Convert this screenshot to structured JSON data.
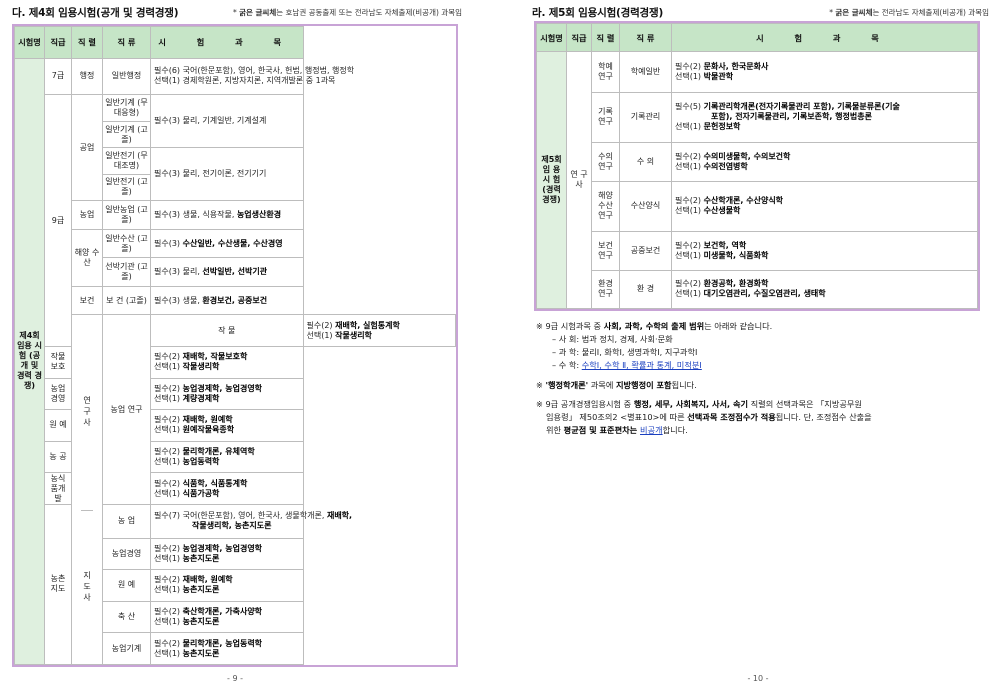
{
  "left": {
    "title": "다. 제4회 임용시험(공개 및 경력경쟁)",
    "note_mark": "* ",
    "note_bold": "굵은 글씨체",
    "note_rest": "는 호남권 공동출제 또는 전라남도 자체출제(비공개) 과목임",
    "headers": [
      "시험명",
      "직급",
      "직 렬",
      "직 류",
      "시 험 과 목"
    ],
    "exam_name": "제4회 임용 시험 (공개 및 경력 경쟁)",
    "grade7": "7급",
    "grade9": "9급",
    "research": "연 구 사",
    "guidance": "지 도 사",
    "rows": {
      "admin_series": "행정",
      "admin_class": "일반행정",
      "admin_s1": "필수(6) 국어(한문포함), 영어, 한국사, 헌법, 행정법, 행정학",
      "admin_s2": "선택(1) 경제학원론, 지방자치론, 지역개발론 중 1과목",
      "eng_series": "공업",
      "mech1": "일반기계 (무대응형)",
      "mech2": "일반기계 (고졸)",
      "mech_s": "필수(3) 물리, 기계일반, 기계설계",
      "elec1": "일반전기 (무대조명)",
      "elec2": "일반전기 (고졸)",
      "elec_s": "필수(3) 물리, 전기이론, 전기기기",
      "agri_series": "농업",
      "agri_class": "일반농업 (고졸)",
      "agri_s_a": "필수(3) 생물, 식용작물, ",
      "agri_s_b": "농업생산환경",
      "ocean_series": "해양 수산",
      "fish_class": "일반수산 (고졸)",
      "fish_s_a": "필수(3) ",
      "fish_s_b": "수산일반, 수산생물, 수산경영",
      "ship_class": "선박기관 (고졸)",
      "ship_s_a": "필수(3) 물리, ",
      "ship_s_b": "선박일반, 선박기관",
      "health_series": "보건",
      "health_class": "보 건 (고졸)",
      "health_s_a": "필수(3) 생물, ",
      "health_s_b": "환경보건, 공중보건",
      "agri_research": "농업 연구",
      "r1_class": "작 물",
      "r1_s1a": "필수(2) ",
      "r1_s1b": "재배학, 실험통계학",
      "r1_s2a": "선택(1) ",
      "r1_s2b": "작물생리학",
      "r2_class": "작물보호",
      "r2_s1a": "필수(2) ",
      "r2_s1b": "재배학, 작물보호학",
      "r2_s2a": "선택(1) ",
      "r2_s2b": "작물생리학",
      "r3_class": "농업경영",
      "r3_s1a": "필수(2) ",
      "r3_s1b": "농업경제학, 농업경영학",
      "r3_s2a": "선택(1) ",
      "r3_s2b": "계량경제학",
      "r4_class": "원 예",
      "r4_s1a": "필수(2) ",
      "r4_s1b": "재배학, 원예학",
      "r4_s2a": "선택(1) ",
      "r4_s2b": "원예작물육종학",
      "r5_class": "농 공",
      "r5_s1a": "필수(2) ",
      "r5_s1b": "물리학개론, 유체역학",
      "r5_s2a": "선택(1) ",
      "r5_s2b": "농업동력학",
      "r6_class": "농식품개발",
      "r6_s1a": "필수(2) ",
      "r6_s1b": "식품학, 식품통계학",
      "r6_s2a": "선택(1) ",
      "r6_s2b": "식품가공학",
      "rural_guid": "농촌 지도",
      "g1_class": "농 업",
      "g1_s1a": "필수(7) 국어(한문포함), 영어, 한국사, 생물학개론, ",
      "g1_s1b": "재배학,",
      "g1_s2": "작물생리학, 농촌지도론",
      "g2_class": "농업경영",
      "g2_s1a": "필수(2) ",
      "g2_s1b": "농업경제학, 농업경영학",
      "g2_s2a": "선택(1) ",
      "g2_s2b": "농촌지도론",
      "g3_class": "원 예",
      "g3_s1a": "필수(2) ",
      "g3_s1b": "재배학, 원예학",
      "g3_s2a": "선택(1) ",
      "g3_s2b": "농촌지도론",
      "g4_class": "축 산",
      "g4_s1a": "필수(2) ",
      "g4_s1b": "축산학개론, 가축사양학",
      "g4_s2a": "선택(1) ",
      "g4_s2b": "농촌지도론",
      "g5_class": "농업기계",
      "g5_s1a": "필수(2) ",
      "g5_s1b": "물리학개론, 농업동력학",
      "g5_s2a": "선택(1) ",
      "g5_s2b": "농촌지도론"
    },
    "page_number": "- 9 -"
  },
  "right": {
    "title": "라. 제5회 임용시험(경력경쟁)",
    "note_mark": "* ",
    "note_bold": "굵은 글씨체",
    "note_rest": "는 전라남도 자체출제(비공개) 과목임",
    "headers": [
      "시험명",
      "직급",
      "직 렬",
      "직 류",
      "시 험 과 목"
    ],
    "exam_name": "제5회 임 용 시 험 (경력 경쟁)",
    "grade": "연 구 사",
    "rows": {
      "a_series": "학예 연구",
      "a_class": "학예일반",
      "a_s1a": "필수(2) ",
      "a_s1b": "문화사, 한국문화사",
      "a_s2a": "선택(1) ",
      "a_s2b": "박물관학",
      "b_series": "기록 연구",
      "b_class": "기록관리",
      "b_s1a": "필수(5) ",
      "b_s1b": "기록관리학개론(전자기록물관리 포함), 기록물분류론(기술",
      "b_s2": "포함), 전자기록물관리, 기록보존학, 행정법총론",
      "b_s3a": "선택(1) ",
      "b_s3b": "문헌정보학",
      "c_series": "수의 연구",
      "c_class": "수 의",
      "c_s1a": "필수(2) ",
      "c_s1b": "수의미생물학, 수의보건학",
      "c_s2a": "선택(1) ",
      "c_s2b": "수의전염병학",
      "d_series": "해양 수산 연구",
      "d_class": "수산양식",
      "d_s1a": "필수(2) ",
      "d_s1b": "수산학개론, 수산양식학",
      "d_s2a": "선택(1) ",
      "d_s2b": "수산생물학",
      "e_series": "보건 연구",
      "e_class": "공중보건",
      "e_s1a": "필수(2) ",
      "e_s1b": "보건학, 역학",
      "e_s2a": "선택(1) ",
      "e_s2b": "미생물학, 식품화학",
      "f_series": "환경 연구",
      "f_class": "환 경",
      "f_s1a": "필수(2) ",
      "f_s1b": "환경공학, 환경화학",
      "f_s2a": "선택(1) ",
      "f_s2b": "대기오염관리, 수질오염관리, 생태학"
    },
    "notes": {
      "n1_a": "※ 9급 시험과목 중 ",
      "n1_b": "사회, 과학, 수학의 출제 범위",
      "n1_c": "는 아래와 같습니다.",
      "n1_l1": "– 사 회: 법과 정치, 경제, 사회·문화",
      "n1_l2": "– 과 학: 물리Ⅰ, 화학Ⅰ, 생명과학Ⅰ, 지구과학Ⅰ",
      "n1_l3a": "– 수 학: ",
      "n1_l3b": "수학Ⅰ, 수학 Ⅱ, 확률과 통계, 미적분Ⅰ",
      "n2_a": "※ ",
      "n2_b": "'행정학개론'",
      "n2_c": " 과목에 ",
      "n2_d": "지방행정이 포함",
      "n2_e": "됩니다.",
      "n3_a": "※ 9급 공개경쟁임용시험 중 ",
      "n3_b": "행정, 세무, 사회복지, 사서, 속기",
      "n3_c": " 직렬의 선택과목은 「지방공무원",
      "n3_d": "임용령」 제50조의2 <별표10>에 따른 ",
      "n3_e": "선택과목 조정점수가 적용",
      "n3_f": "됩니다. 단, 조정점수 산출을",
      "n3_g": "위한 ",
      "n3_h": "평균점 및 표준편차는 ",
      "n3_i": "비공개",
      "n3_j": "합니다."
    },
    "page_number": "- 10 -"
  }
}
